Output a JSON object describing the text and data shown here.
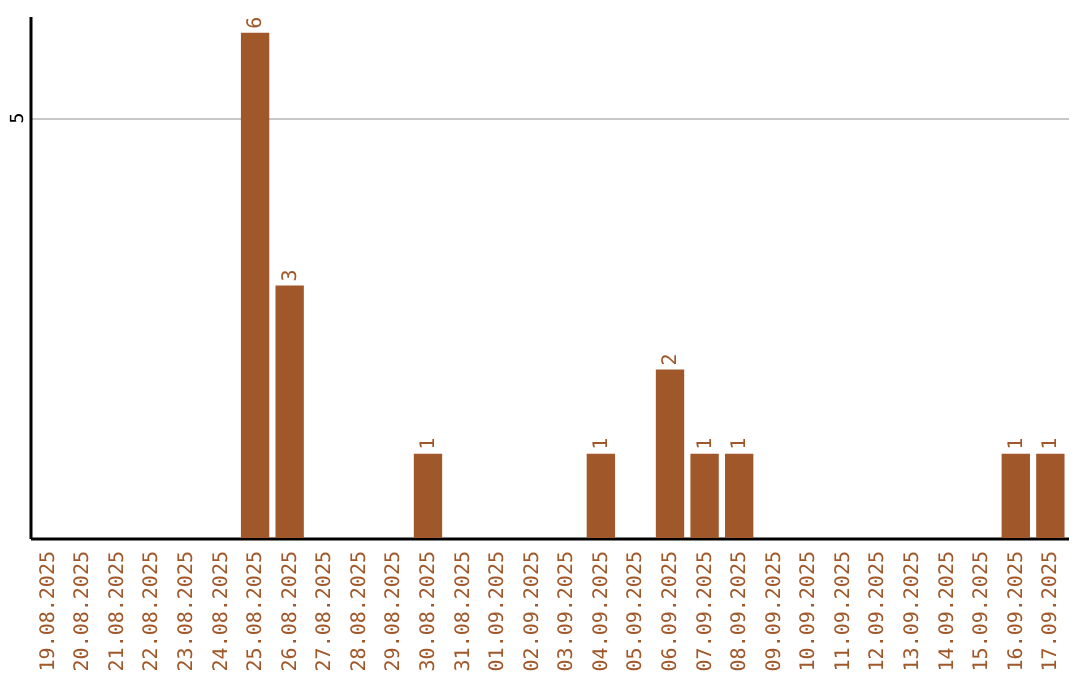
{
  "chart_data": {
    "type": "bar",
    "categories": [
      "19.08.2025",
      "20.08.2025",
      "21.08.2025",
      "22.08.2025",
      "23.08.2025",
      "24.08.2025",
      "25.08.2025",
      "26.08.2025",
      "27.08.2025",
      "28.08.2025",
      "29.08.2025",
      "30.08.2025",
      "31.08.2025",
      "01.09.2025",
      "02.09.2025",
      "03.09.2025",
      "04.09.2025",
      "05.09.2025",
      "06.09.2025",
      "07.09.2025",
      "08.09.2025",
      "09.09.2025",
      "10.09.2025",
      "11.09.2025",
      "12.09.2025",
      "13.09.2025",
      "14.09.2025",
      "15.09.2025",
      "16.09.2025",
      "17.09.2025"
    ],
    "values": [
      0,
      0,
      0,
      0,
      0,
      0,
      6,
      3,
      0,
      0,
      0,
      1,
      0,
      0,
      0,
      0,
      1,
      0,
      2,
      1,
      1,
      0,
      0,
      0,
      0,
      0,
      0,
      0,
      1,
      1
    ],
    "value_labels": [
      null,
      null,
      null,
      null,
      null,
      null,
      "6",
      "3",
      null,
      null,
      null,
      "1",
      null,
      null,
      null,
      null,
      "1",
      null,
      "2",
      "1",
      "1",
      null,
      null,
      null,
      null,
      null,
      null,
      null,
      "1",
      "1"
    ],
    "color": "#a0582a",
    "ylim": [
      0,
      6.2
    ],
    "yticks": [
      5
    ],
    "grid": "y"
  }
}
